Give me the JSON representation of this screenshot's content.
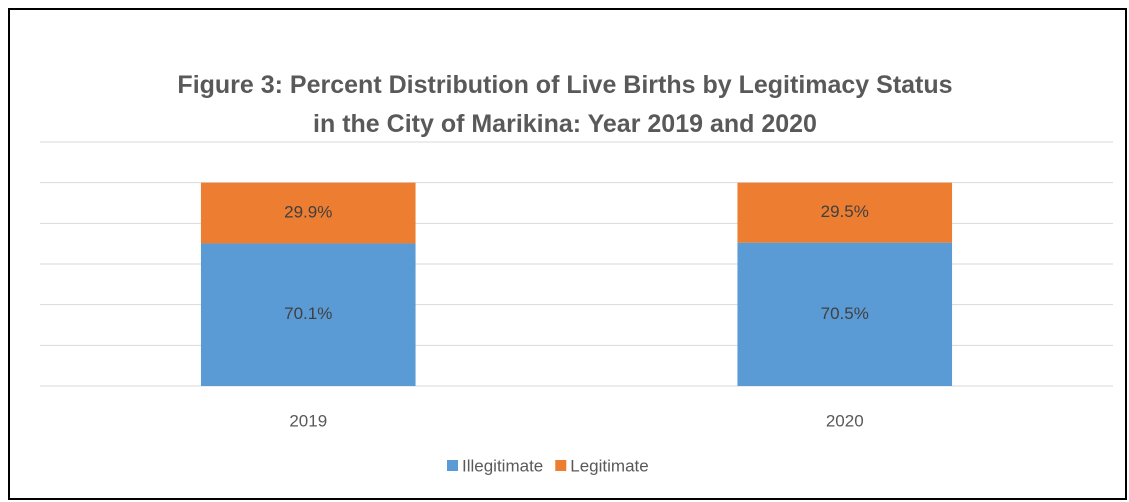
{
  "chart_data": {
    "type": "stacked_bar",
    "title": "Figure 3: Percent Distribution of Live Births by Legitimacy Status in the City of Marikina: Year 2019 and 2020",
    "categories": [
      "2019",
      "2020"
    ],
    "series": [
      {
        "name": "Illegitimate",
        "color": "#5b9bd5",
        "values": [
          70.1,
          70.5
        ],
        "value_labels": [
          "70.1%",
          "70.5%"
        ]
      },
      {
        "name": "Legitimate",
        "color": "#ed7d31",
        "values": [
          29.9,
          29.5
        ],
        "value_labels": [
          "29.9%",
          "29.5%"
        ]
      }
    ],
    "ylim": [
      0,
      120
    ],
    "yticks": [
      0,
      20,
      40,
      60,
      80,
      100,
      120
    ],
    "grid": true,
    "legend": "bottom"
  }
}
